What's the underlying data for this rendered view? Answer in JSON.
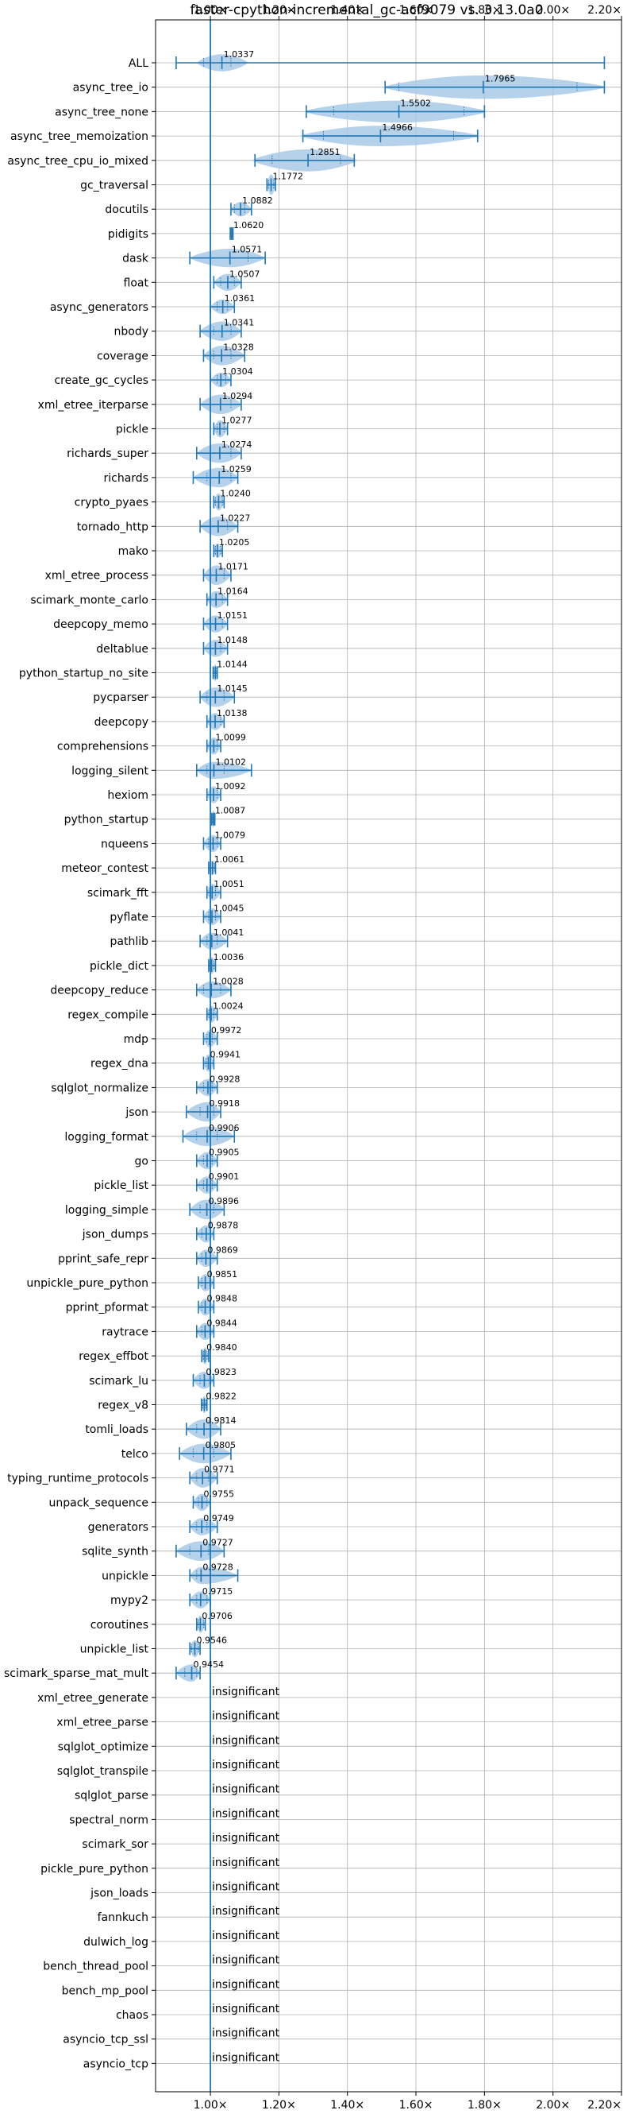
{
  "chart_data": {
    "type": "violin",
    "title": "faster-cpython-incremental_gc-acf9079 vs. 3.13.0a0",
    "xlim": [
      0.84,
      2.2
    ],
    "xticks": [
      {
        "value": 1.0,
        "label": "1.00×"
      },
      {
        "value": 1.2,
        "label": "1.20×"
      },
      {
        "value": 1.4,
        "label": "1.40×"
      },
      {
        "value": 1.6,
        "label": "1.60×"
      },
      {
        "value": 1.8,
        "label": "1.80×"
      },
      {
        "value": 2.0,
        "label": "2.00×"
      },
      {
        "value": 2.2,
        "label": "2.20×"
      }
    ],
    "reference_line": 1.0,
    "grid": true,
    "color": "#1f77b4",
    "fill_color": "#a9c9e6",
    "benchmarks": [
      {
        "name": "ALL",
        "mean": 1.0337,
        "label": "1.0337",
        "min": 0.9,
        "max": 2.15,
        "q1": 0.98,
        "q3": 1.06,
        "wmin": 0.96,
        "wmax": 1.11,
        "w": 0.35
      },
      {
        "name": "async_tree_io",
        "mean": 1.7965,
        "label": "1.7965",
        "min": 1.51,
        "max": 2.15,
        "q1": 1.55,
        "q3": 2.07,
        "wmin": 1.5,
        "wmax": 2.16,
        "w": 0.48
      },
      {
        "name": "async_tree_none",
        "mean": 1.5502,
        "label": "1.5502",
        "min": 1.28,
        "max": 1.8,
        "q1": 1.36,
        "q3": 1.74,
        "wmin": 1.27,
        "wmax": 1.81,
        "w": 0.45
      },
      {
        "name": "async_tree_memoization",
        "mean": 1.4966,
        "label": "1.4966",
        "min": 1.27,
        "max": 1.78,
        "q1": 1.33,
        "q3": 1.71,
        "wmin": 1.26,
        "wmax": 1.79,
        "w": 0.42
      },
      {
        "name": "async_tree_cpu_io_mixed",
        "mean": 1.2851,
        "label": "1.2851",
        "min": 1.13,
        "max": 1.42,
        "q1": 1.18,
        "q3": 1.38,
        "wmin": 1.12,
        "wmax": 1.43,
        "w": 0.45
      },
      {
        "name": "gc_traversal",
        "mean": 1.1772,
        "label": "1.1772",
        "min": 1.165,
        "max": 1.19,
        "q1": 1.17,
        "q3": 1.185,
        "wmin": 1.165,
        "wmax": 1.19,
        "w": 0.42
      },
      {
        "name": "docutils",
        "mean": 1.0882,
        "label": "1.0882",
        "min": 1.06,
        "max": 1.12,
        "q1": 1.07,
        "q3": 1.1,
        "wmin": 1.06,
        "wmax": 1.12,
        "w": 0.3
      },
      {
        "name": "pidigits",
        "mean": 1.062,
        "label": "1.0620",
        "min": 1.058,
        "max": 1.066,
        "q1": 1.06,
        "q3": 1.064,
        "wmin": 1.058,
        "wmax": 1.066,
        "w": 0.2
      },
      {
        "name": "dask",
        "mean": 1.0571,
        "label": "1.0571",
        "min": 0.94,
        "max": 1.16,
        "q1": 1.0,
        "q3": 1.11,
        "wmin": 0.94,
        "wmax": 1.16,
        "w": 0.38
      },
      {
        "name": "float",
        "mean": 1.0507,
        "label": "1.0507",
        "min": 1.01,
        "max": 1.09,
        "q1": 1.03,
        "q3": 1.07,
        "wmin": 1.01,
        "wmax": 1.09,
        "w": 0.35
      },
      {
        "name": "async_generators",
        "mean": 1.0361,
        "label": "1.0361",
        "min": 1.0,
        "max": 1.07,
        "q1": 1.02,
        "q3": 1.05,
        "wmin": 1.0,
        "wmax": 1.07,
        "w": 0.3
      },
      {
        "name": "nbody",
        "mean": 1.0341,
        "label": "1.0341",
        "min": 0.97,
        "max": 1.09,
        "q1": 1.01,
        "q3": 1.06,
        "wmin": 0.97,
        "wmax": 1.09,
        "w": 0.4
      },
      {
        "name": "coverage",
        "mean": 1.0328,
        "label": "1.0328",
        "min": 0.98,
        "max": 1.1,
        "q1": 1.01,
        "q3": 1.06,
        "wmin": 0.98,
        "wmax": 1.1,
        "w": 0.4
      },
      {
        "name": "create_gc_cycles",
        "mean": 1.0304,
        "label": "1.0304",
        "min": 1.0,
        "max": 1.06,
        "q1": 1.02,
        "q3": 1.045,
        "wmin": 1.0,
        "wmax": 1.06,
        "w": 0.3
      },
      {
        "name": "xml_etree_iterparse",
        "mean": 1.0294,
        "label": "1.0294",
        "min": 0.97,
        "max": 1.09,
        "q1": 1.0,
        "q3": 1.06,
        "wmin": 0.97,
        "wmax": 1.09,
        "w": 0.4
      },
      {
        "name": "pickle",
        "mean": 1.0277,
        "label": "1.0277",
        "min": 1.01,
        "max": 1.05,
        "q1": 1.02,
        "q3": 1.04,
        "wmin": 1.01,
        "wmax": 1.05,
        "w": 0.35
      },
      {
        "name": "richards_super",
        "mean": 1.0274,
        "label": "1.0274",
        "min": 0.96,
        "max": 1.09,
        "q1": 1.0,
        "q3": 1.06,
        "wmin": 0.96,
        "wmax": 1.09,
        "w": 0.4
      },
      {
        "name": "richards",
        "mean": 1.0259,
        "label": "1.0259",
        "min": 0.95,
        "max": 1.08,
        "q1": 0.99,
        "q3": 1.06,
        "wmin": 0.95,
        "wmax": 1.08,
        "w": 0.4
      },
      {
        "name": "crypto_pyaes",
        "mean": 1.024,
        "label": "1.0240",
        "min": 1.01,
        "max": 1.04,
        "q1": 1.015,
        "q3": 1.035,
        "wmin": 1.01,
        "wmax": 1.04,
        "w": 0.35
      },
      {
        "name": "tornado_http",
        "mean": 1.0227,
        "label": "1.0227",
        "min": 0.97,
        "max": 1.08,
        "q1": 1.0,
        "q3": 1.05,
        "wmin": 0.97,
        "wmax": 1.08,
        "w": 0.4
      },
      {
        "name": "mako",
        "mean": 1.0205,
        "label": "1.0205",
        "min": 1.01,
        "max": 1.035,
        "q1": 1.015,
        "q3": 1.03,
        "wmin": 1.01,
        "wmax": 1.035,
        "w": 0.3
      },
      {
        "name": "xml_etree_process",
        "mean": 1.0171,
        "label": "1.0171",
        "min": 0.98,
        "max": 1.06,
        "q1": 1.0,
        "q3": 1.04,
        "wmin": 0.98,
        "wmax": 1.06,
        "w": 0.4
      },
      {
        "name": "scimark_monte_carlo",
        "mean": 1.0164,
        "label": "1.0164",
        "min": 0.99,
        "max": 1.05,
        "q1": 1.0,
        "q3": 1.035,
        "wmin": 0.99,
        "wmax": 1.05,
        "w": 0.35
      },
      {
        "name": "deepcopy_memo",
        "mean": 1.0151,
        "label": "1.0151",
        "min": 0.98,
        "max": 1.05,
        "q1": 1.0,
        "q3": 1.035,
        "wmin": 0.98,
        "wmax": 1.05,
        "w": 0.35
      },
      {
        "name": "deltablue",
        "mean": 1.0148,
        "label": "1.0148",
        "min": 0.98,
        "max": 1.05,
        "q1": 1.0,
        "q3": 1.03,
        "wmin": 0.98,
        "wmax": 1.05,
        "w": 0.35
      },
      {
        "name": "python_startup_no_site",
        "mean": 1.0144,
        "label": "1.0144",
        "min": 1.008,
        "max": 1.02,
        "q1": 1.01,
        "q3": 1.018,
        "wmin": 1.008,
        "wmax": 1.02,
        "w": 0.35
      },
      {
        "name": "pycparser",
        "mean": 1.0145,
        "label": "1.0145",
        "min": 0.97,
        "max": 1.07,
        "q1": 0.99,
        "q3": 1.04,
        "wmin": 0.97,
        "wmax": 1.07,
        "w": 0.4
      },
      {
        "name": "deepcopy",
        "mean": 1.0138,
        "label": "1.0138",
        "min": 0.99,
        "max": 1.04,
        "q1": 1.0,
        "q3": 1.03,
        "wmin": 0.99,
        "wmax": 1.04,
        "w": 0.35
      },
      {
        "name": "comprehensions",
        "mean": 1.0099,
        "label": "1.0099",
        "min": 0.99,
        "max": 1.03,
        "q1": 1.0,
        "q3": 1.02,
        "wmin": 0.99,
        "wmax": 1.03,
        "w": 0.35
      },
      {
        "name": "logging_silent",
        "mean": 1.0102,
        "label": "1.0102",
        "min": 0.96,
        "max": 1.12,
        "q1": 0.99,
        "q3": 1.04,
        "wmin": 0.96,
        "wmax": 1.12,
        "w": 0.35
      },
      {
        "name": "hexiom",
        "mean": 1.0092,
        "label": "1.0092",
        "min": 0.99,
        "max": 1.03,
        "q1": 1.0,
        "q3": 1.02,
        "wmin": 0.99,
        "wmax": 1.03,
        "w": 0.35
      },
      {
        "name": "python_startup",
        "mean": 1.0087,
        "label": "1.0087",
        "min": 1.004,
        "max": 1.013,
        "q1": 1.006,
        "q3": 1.011,
        "wmin": 1.004,
        "wmax": 1.013,
        "w": 0.35
      },
      {
        "name": "nqueens",
        "mean": 1.0079,
        "label": "1.0079",
        "min": 0.98,
        "max": 1.03,
        "q1": 0.995,
        "q3": 1.02,
        "wmin": 0.98,
        "wmax": 1.03,
        "w": 0.35
      },
      {
        "name": "meteor_contest",
        "mean": 1.0061,
        "label": "1.0061",
        "min": 0.995,
        "max": 1.015,
        "q1": 1.0,
        "q3": 1.012,
        "wmin": 0.995,
        "wmax": 1.015,
        "w": 0.3
      },
      {
        "name": "scimark_fft",
        "mean": 1.0051,
        "label": "1.0051",
        "min": 0.99,
        "max": 1.03,
        "q1": 0.998,
        "q3": 1.015,
        "wmin": 0.99,
        "wmax": 1.03,
        "w": 0.35
      },
      {
        "name": "pyflate",
        "mean": 1.0045,
        "label": "1.0045",
        "min": 0.98,
        "max": 1.03,
        "q1": 0.995,
        "q3": 1.015,
        "wmin": 0.98,
        "wmax": 1.03,
        "w": 0.35
      },
      {
        "name": "pathlib",
        "mean": 1.0041,
        "label": "1.0041",
        "min": 0.97,
        "max": 1.05,
        "q1": 0.99,
        "q3": 1.02,
        "wmin": 0.97,
        "wmax": 1.05,
        "w": 0.35
      },
      {
        "name": "pickle_dict",
        "mean": 1.0036,
        "label": "1.0036",
        "min": 0.995,
        "max": 1.015,
        "q1": 0.999,
        "q3": 1.01,
        "wmin": 0.995,
        "wmax": 1.015,
        "w": 0.35
      },
      {
        "name": "deepcopy_reduce",
        "mean": 1.0028,
        "label": "1.0028",
        "min": 0.96,
        "max": 1.06,
        "q1": 0.98,
        "q3": 1.03,
        "wmin": 0.96,
        "wmax": 1.06,
        "w": 0.35
      },
      {
        "name": "regex_compile",
        "mean": 1.0024,
        "label": "1.0024",
        "min": 0.99,
        "max": 1.02,
        "q1": 0.996,
        "q3": 1.01,
        "wmin": 0.99,
        "wmax": 1.02,
        "w": 0.35
      },
      {
        "name": "mdp",
        "mean": 0.9972,
        "label": "0.9972",
        "min": 0.98,
        "max": 1.02,
        "q1": 0.99,
        "q3": 1.005,
        "wmin": 0.98,
        "wmax": 1.02,
        "w": 0.35
      },
      {
        "name": "regex_dna",
        "mean": 0.9941,
        "label": "0.9941",
        "min": 0.98,
        "max": 1.01,
        "q1": 0.988,
        "q3": 1.0,
        "wmin": 0.98,
        "wmax": 1.01,
        "w": 0.35
      },
      {
        "name": "sqlglot_normalize",
        "mean": 0.9928,
        "label": "0.9928",
        "min": 0.96,
        "max": 1.02,
        "q1": 0.98,
        "q3": 1.005,
        "wmin": 0.96,
        "wmax": 1.02,
        "w": 0.35
      },
      {
        "name": "json",
        "mean": 0.9918,
        "label": "0.9918",
        "min": 0.93,
        "max": 1.03,
        "q1": 0.97,
        "q3": 1.01,
        "wmin": 0.93,
        "wmax": 1.03,
        "w": 0.4
      },
      {
        "name": "logging_format",
        "mean": 0.9906,
        "label": "0.9906",
        "min": 0.92,
        "max": 1.07,
        "q1": 0.96,
        "q3": 1.02,
        "wmin": 0.92,
        "wmax": 1.07,
        "w": 0.4
      },
      {
        "name": "go",
        "mean": 0.9905,
        "label": "0.9905",
        "min": 0.96,
        "max": 1.02,
        "q1": 0.98,
        "q3": 1.005,
        "wmin": 0.96,
        "wmax": 1.02,
        "w": 0.35
      },
      {
        "name": "pickle_list",
        "mean": 0.9901,
        "label": "0.9901",
        "min": 0.96,
        "max": 1.02,
        "q1": 0.98,
        "q3": 1.005,
        "wmin": 0.96,
        "wmax": 1.02,
        "w": 0.35
      },
      {
        "name": "logging_simple",
        "mean": 0.9896,
        "label": "0.9896",
        "min": 0.94,
        "max": 1.04,
        "q1": 0.97,
        "q3": 1.01,
        "wmin": 0.94,
        "wmax": 1.04,
        "w": 0.4
      },
      {
        "name": "json_dumps",
        "mean": 0.9878,
        "label": "0.9878",
        "min": 0.96,
        "max": 1.01,
        "q1": 0.975,
        "q3": 1.0,
        "wmin": 0.96,
        "wmax": 1.01,
        "w": 0.35
      },
      {
        "name": "pprint_safe_repr",
        "mean": 0.9869,
        "label": "0.9869",
        "min": 0.96,
        "max": 1.02,
        "q1": 0.975,
        "q3": 1.0,
        "wmin": 0.96,
        "wmax": 1.02,
        "w": 0.35
      },
      {
        "name": "unpickle_pure_python",
        "mean": 0.9851,
        "label": "0.9851",
        "min": 0.965,
        "max": 1.01,
        "q1": 0.975,
        "q3": 0.998,
        "wmin": 0.965,
        "wmax": 1.01,
        "w": 0.35
      },
      {
        "name": "pprint_pformat",
        "mean": 0.9848,
        "label": "0.9848",
        "min": 0.965,
        "max": 1.01,
        "q1": 0.975,
        "q3": 0.998,
        "wmin": 0.965,
        "wmax": 1.01,
        "w": 0.35
      },
      {
        "name": "raytrace",
        "mean": 0.9844,
        "label": "0.9844",
        "min": 0.96,
        "max": 1.01,
        "q1": 0.975,
        "q3": 0.998,
        "wmin": 0.96,
        "wmax": 1.01,
        "w": 0.35
      },
      {
        "name": "regex_effbot",
        "mean": 0.984,
        "label": "0.9840",
        "min": 0.975,
        "max": 0.995,
        "q1": 0.98,
        "q3": 0.99,
        "wmin": 0.975,
        "wmax": 0.995,
        "w": 0.35
      },
      {
        "name": "scimark_lu",
        "mean": 0.9823,
        "label": "0.9823",
        "min": 0.95,
        "max": 1.01,
        "q1": 0.97,
        "q3": 0.998,
        "wmin": 0.95,
        "wmax": 1.01,
        "w": 0.35
      },
      {
        "name": "regex_v8",
        "mean": 0.9822,
        "label": "0.9822",
        "min": 0.974,
        "max": 0.99,
        "q1": 0.978,
        "q3": 0.987,
        "wmin": 0.974,
        "wmax": 0.99,
        "w": 0.35
      },
      {
        "name": "tomli_loads",
        "mean": 0.9814,
        "label": "0.9814",
        "min": 0.93,
        "max": 1.03,
        "q1": 0.96,
        "q3": 1.0,
        "wmin": 0.93,
        "wmax": 1.03,
        "w": 0.4
      },
      {
        "name": "telco",
        "mean": 0.9805,
        "label": "0.9805",
        "min": 0.91,
        "max": 1.06,
        "q1": 0.95,
        "q3": 1.01,
        "wmin": 0.91,
        "wmax": 1.06,
        "w": 0.4
      },
      {
        "name": "typing_runtime_protocols",
        "mean": 0.9771,
        "label": "0.9771",
        "min": 0.94,
        "max": 1.02,
        "q1": 0.96,
        "q3": 0.995,
        "wmin": 0.94,
        "wmax": 1.02,
        "w": 0.4
      },
      {
        "name": "unpack_sequence",
        "mean": 0.9755,
        "label": "0.9755",
        "min": 0.95,
        "max": 1.0,
        "q1": 0.965,
        "q3": 0.99,
        "wmin": 0.95,
        "wmax": 1.0,
        "w": 0.35
      },
      {
        "name": "generators",
        "mean": 0.9749,
        "label": "0.9749",
        "min": 0.94,
        "max": 1.02,
        "q1": 0.96,
        "q3": 0.99,
        "wmin": 0.94,
        "wmax": 1.02,
        "w": 0.35
      },
      {
        "name": "sqlite_synth",
        "mean": 0.9727,
        "label": "0.9727",
        "min": 0.9,
        "max": 1.04,
        "q1": 0.94,
        "q3": 0.995,
        "wmin": 0.9,
        "wmax": 1.04,
        "w": 0.4
      },
      {
        "name": "unpickle",
        "mean": 0.9728,
        "label": "0.9728",
        "min": 0.94,
        "max": 1.08,
        "q1": 0.96,
        "q3": 1.0,
        "wmin": 0.94,
        "wmax": 1.08,
        "w": 0.35
      },
      {
        "name": "mypy2",
        "mean": 0.9715,
        "label": "0.9715",
        "min": 0.94,
        "max": 1.0,
        "q1": 0.96,
        "q3": 0.99,
        "wmin": 0.94,
        "wmax": 1.0,
        "w": 0.35
      },
      {
        "name": "coroutines",
        "mean": 0.9706,
        "label": "0.9706",
        "min": 0.96,
        "max": 0.985,
        "q1": 0.965,
        "q3": 0.98,
        "wmin": 0.96,
        "wmax": 0.985,
        "w": 0.35
      },
      {
        "name": "unpickle_list",
        "mean": 0.9546,
        "label": "0.9546",
        "min": 0.94,
        "max": 0.97,
        "q1": 0.945,
        "q3": 0.965,
        "wmin": 0.94,
        "wmax": 0.97,
        "w": 0.35
      },
      {
        "name": "scimark_sparse_mat_mult",
        "mean": 0.9454,
        "label": "0.9454",
        "min": 0.9,
        "max": 0.97,
        "q1": 0.925,
        "q3": 0.96,
        "wmin": 0.9,
        "wmax": 0.97,
        "w": 0.35
      },
      {
        "name": "xml_etree_generate",
        "insignificant": true,
        "label": "insignificant"
      },
      {
        "name": "xml_etree_parse",
        "insignificant": true,
        "label": "insignificant"
      },
      {
        "name": "sqlglot_optimize",
        "insignificant": true,
        "label": "insignificant"
      },
      {
        "name": "sqlglot_transpile",
        "insignificant": true,
        "label": "insignificant"
      },
      {
        "name": "sqlglot_parse",
        "insignificant": true,
        "label": "insignificant"
      },
      {
        "name": "spectral_norm",
        "insignificant": true,
        "label": "insignificant"
      },
      {
        "name": "scimark_sor",
        "insignificant": true,
        "label": "insignificant"
      },
      {
        "name": "pickle_pure_python",
        "insignificant": true,
        "label": "insignificant"
      },
      {
        "name": "json_loads",
        "insignificant": true,
        "label": "insignificant"
      },
      {
        "name": "fannkuch",
        "insignificant": true,
        "label": "insignificant"
      },
      {
        "name": "dulwich_log",
        "insignificant": true,
        "label": "insignificant"
      },
      {
        "name": "bench_thread_pool",
        "insignificant": true,
        "label": "insignificant"
      },
      {
        "name": "bench_mp_pool",
        "insignificant": true,
        "label": "insignificant"
      },
      {
        "name": "chaos",
        "insignificant": true,
        "label": "insignificant"
      },
      {
        "name": "asyncio_tcp_ssl",
        "insignificant": true,
        "label": "insignificant"
      },
      {
        "name": "asyncio_tcp",
        "insignificant": true,
        "label": "insignificant"
      }
    ]
  }
}
